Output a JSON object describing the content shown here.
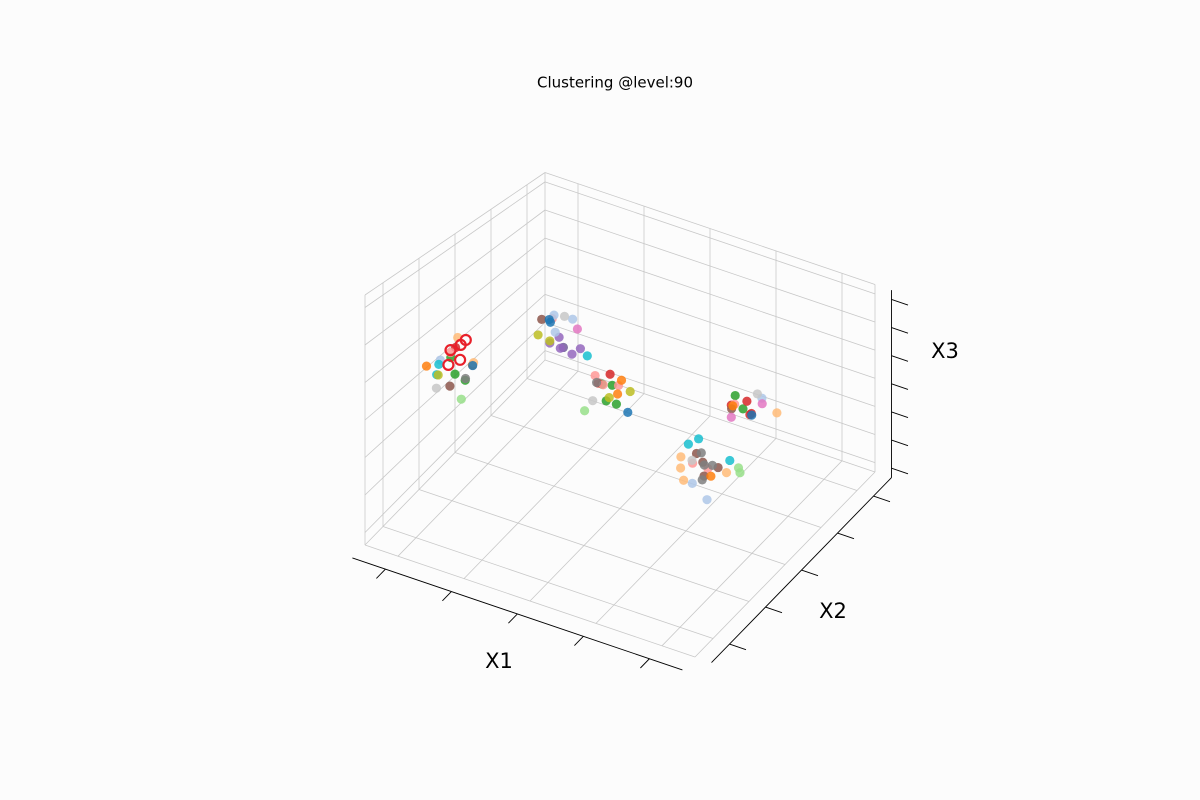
{
  "chart_data": {
    "type": "scatter3d",
    "title": "Clustering @level:90",
    "xlabel": "X1",
    "ylabel": "X2",
    "zlabel": "X3",
    "xlim": [
      0,
      10
    ],
    "ylim": [
      0,
      10
    ],
    "zlim": [
      0,
      10
    ],
    "xticks": [
      1,
      3,
      5,
      7,
      9
    ],
    "yticks": [
      1,
      3,
      5,
      7,
      9
    ],
    "zticks": [
      0.5,
      2,
      3.5,
      5,
      6.5,
      8,
      9.5
    ],
    "grid": true,
    "series": [
      {
        "color": "#2ca02c",
        "x": [
          1.2,
          0.8,
          1.4,
          4.2,
          3.8,
          4.4,
          4.0,
          6.8,
          7.2,
          2.3
        ],
        "y": [
          2.8,
          3.3,
          3.0,
          5.7,
          6.2,
          5.9,
          6.4,
          8.1,
          7.8,
          6.8
        ],
        "z": [
          5.7,
          5.9,
          5.4,
          4.0,
          4.2,
          3.8,
          4.1,
          3.8,
          3.6,
          4.7
        ]
      },
      {
        "color": "#d62728",
        "x": [
          7.1,
          7.4,
          6.9,
          4.1,
          3.9,
          1.0,
          7.3
        ],
        "y": [
          8.2,
          7.9,
          7.7,
          6.1,
          5.8,
          3.2,
          8.0
        ],
        "z": [
          3.6,
          3.4,
          3.7,
          4.9,
          4.6,
          6.5,
          3.2
        ]
      },
      {
        "color": "#ff9896",
        "x": [
          4.0,
          4.3,
          3.7,
          0.9,
          8.1,
          7.8,
          1.8,
          7.0
        ],
        "y": [
          5.9,
          6.2,
          6.0,
          3.1,
          4.2,
          3.9,
          7.1,
          7.7
        ],
        "z": [
          4.5,
          4.4,
          4.7,
          6.3,
          4.0,
          4.3,
          5.6,
          3.8
        ]
      },
      {
        "color": "#9467bd",
        "x": [
          2.1,
          2.3,
          1.9,
          2.4,
          2.0,
          2.6
        ],
        "y": [
          7.0,
          6.8,
          7.3,
          7.1,
          6.6,
          7.2
        ],
        "z": [
          4.4,
          4.7,
          4.6,
          4.2,
          4.9,
          4.5
        ]
      },
      {
        "color": "#aec7e8",
        "x": [
          1.8,
          2.2,
          2.0,
          0.7,
          7.5,
          7.9,
          8.4
        ],
        "y": [
          7.2,
          7.5,
          6.9,
          2.9,
          8.3,
          3.7,
          3.6
        ],
        "z": [
          5.7,
          5.5,
          5.2,
          6.0,
          3.9,
          3.6,
          3.2
        ]
      },
      {
        "color": "#8c564b",
        "x": [
          8.0,
          8.2,
          7.7,
          8.3,
          1.1,
          1.7,
          6.8
        ],
        "y": [
          4.1,
          3.8,
          4.3,
          4.4,
          2.7,
          6.7,
          7.9
        ],
        "z": [
          4.3,
          4.0,
          4.4,
          4.0,
          5.2,
          5.8,
          3.3
        ]
      },
      {
        "color": "#ff7f0e",
        "x": [
          4.5,
          4.6,
          8.3,
          7.0,
          0.5,
          1.4
        ],
        "y": [
          6.0,
          5.6,
          4.0,
          7.6,
          2.5,
          3.4
        ],
        "z": [
          4.9,
          4.6,
          3.9,
          3.8,
          5.9,
          5.8
        ]
      },
      {
        "color": "#ffbb78",
        "x": [
          7.6,
          7.8,
          7.5,
          8.5,
          0.9,
          1.6,
          7.9
        ],
        "y": [
          3.6,
          3.4,
          3.8,
          4.5,
          3.5,
          3.1,
          8.4
        ],
        "z": [
          4.2,
          3.9,
          4.5,
          3.8,
          6.7,
          6.2,
          3.3
        ]
      },
      {
        "color": "#17becf",
        "x": [
          0.6,
          0.7,
          7.4,
          7.6,
          8.6,
          3.3
        ],
        "y": [
          3.0,
          2.7,
          4.4,
          4.6,
          4.5,
          6.3
        ],
        "z": [
          5.7,
          5.5,
          4.6,
          4.8,
          4.4,
          5.2
        ]
      },
      {
        "color": "#bcbd22",
        "x": [
          1.7,
          2.0,
          0.8,
          4.6,
          4.4
        ],
        "y": [
          6.5,
          6.6,
          2.6,
          6.3,
          5.5
        ],
        "z": [
          5.2,
          5.0,
          5.6,
          4.2,
          4.4
        ]
      },
      {
        "color": "#7f7f7f",
        "x": [
          8.1,
          7.9,
          8.2,
          3.8,
          1.3,
          8.4
        ],
        "y": [
          4.0,
          4.2,
          3.7,
          5.9,
          3.2,
          3.9
        ],
        "z": [
          4.3,
          4.6,
          3.9,
          4.5,
          5.3,
          4.5
        ]
      },
      {
        "color": "#1f77b4",
        "x": [
          1.6,
          1.8,
          1.3,
          7.3,
          4.8
        ],
        "y": [
          7.3,
          7.0,
          3.6,
          8.1,
          5.8
        ],
        "z": [
          5.3,
          5.5,
          5.6,
          3.1,
          3.7
        ]
      },
      {
        "color": "#98df8a",
        "x": [
          1.5,
          8.7,
          8.8,
          3.6
        ],
        "y": [
          2.6,
          4.8,
          4.7,
          5.6
        ],
        "z": [
          4.9,
          3.9,
          3.8,
          3.3
        ]
      },
      {
        "color": "#e377c2",
        "x": [
          2.4,
          6.9,
          7.4
        ],
        "y": [
          7.4,
          7.7,
          8.5
        ],
        "z": [
          5.2,
          3.1,
          3.4
        ]
      },
      {
        "color": "#c7c7c7",
        "x": [
          0.8,
          3.9,
          7.2,
          8.0,
          1.9
        ],
        "y": [
          2.5,
          5.5,
          8.6,
          3.5,
          7.6
        ],
        "z": [
          5.1,
          4.0,
          3.7,
          4.8,
          5.4
        ]
      },
      {
        "color": "#e8202a",
        "hollow": true,
        "x": [
          0.9,
          1.1,
          1.3,
          1.0,
          1.2
        ],
        "y": [
          3.1,
          3.3,
          2.9,
          2.8,
          3.4
        ],
        "z": [
          6.4,
          6.6,
          6.3,
          6.0,
          6.8
        ]
      }
    ]
  }
}
